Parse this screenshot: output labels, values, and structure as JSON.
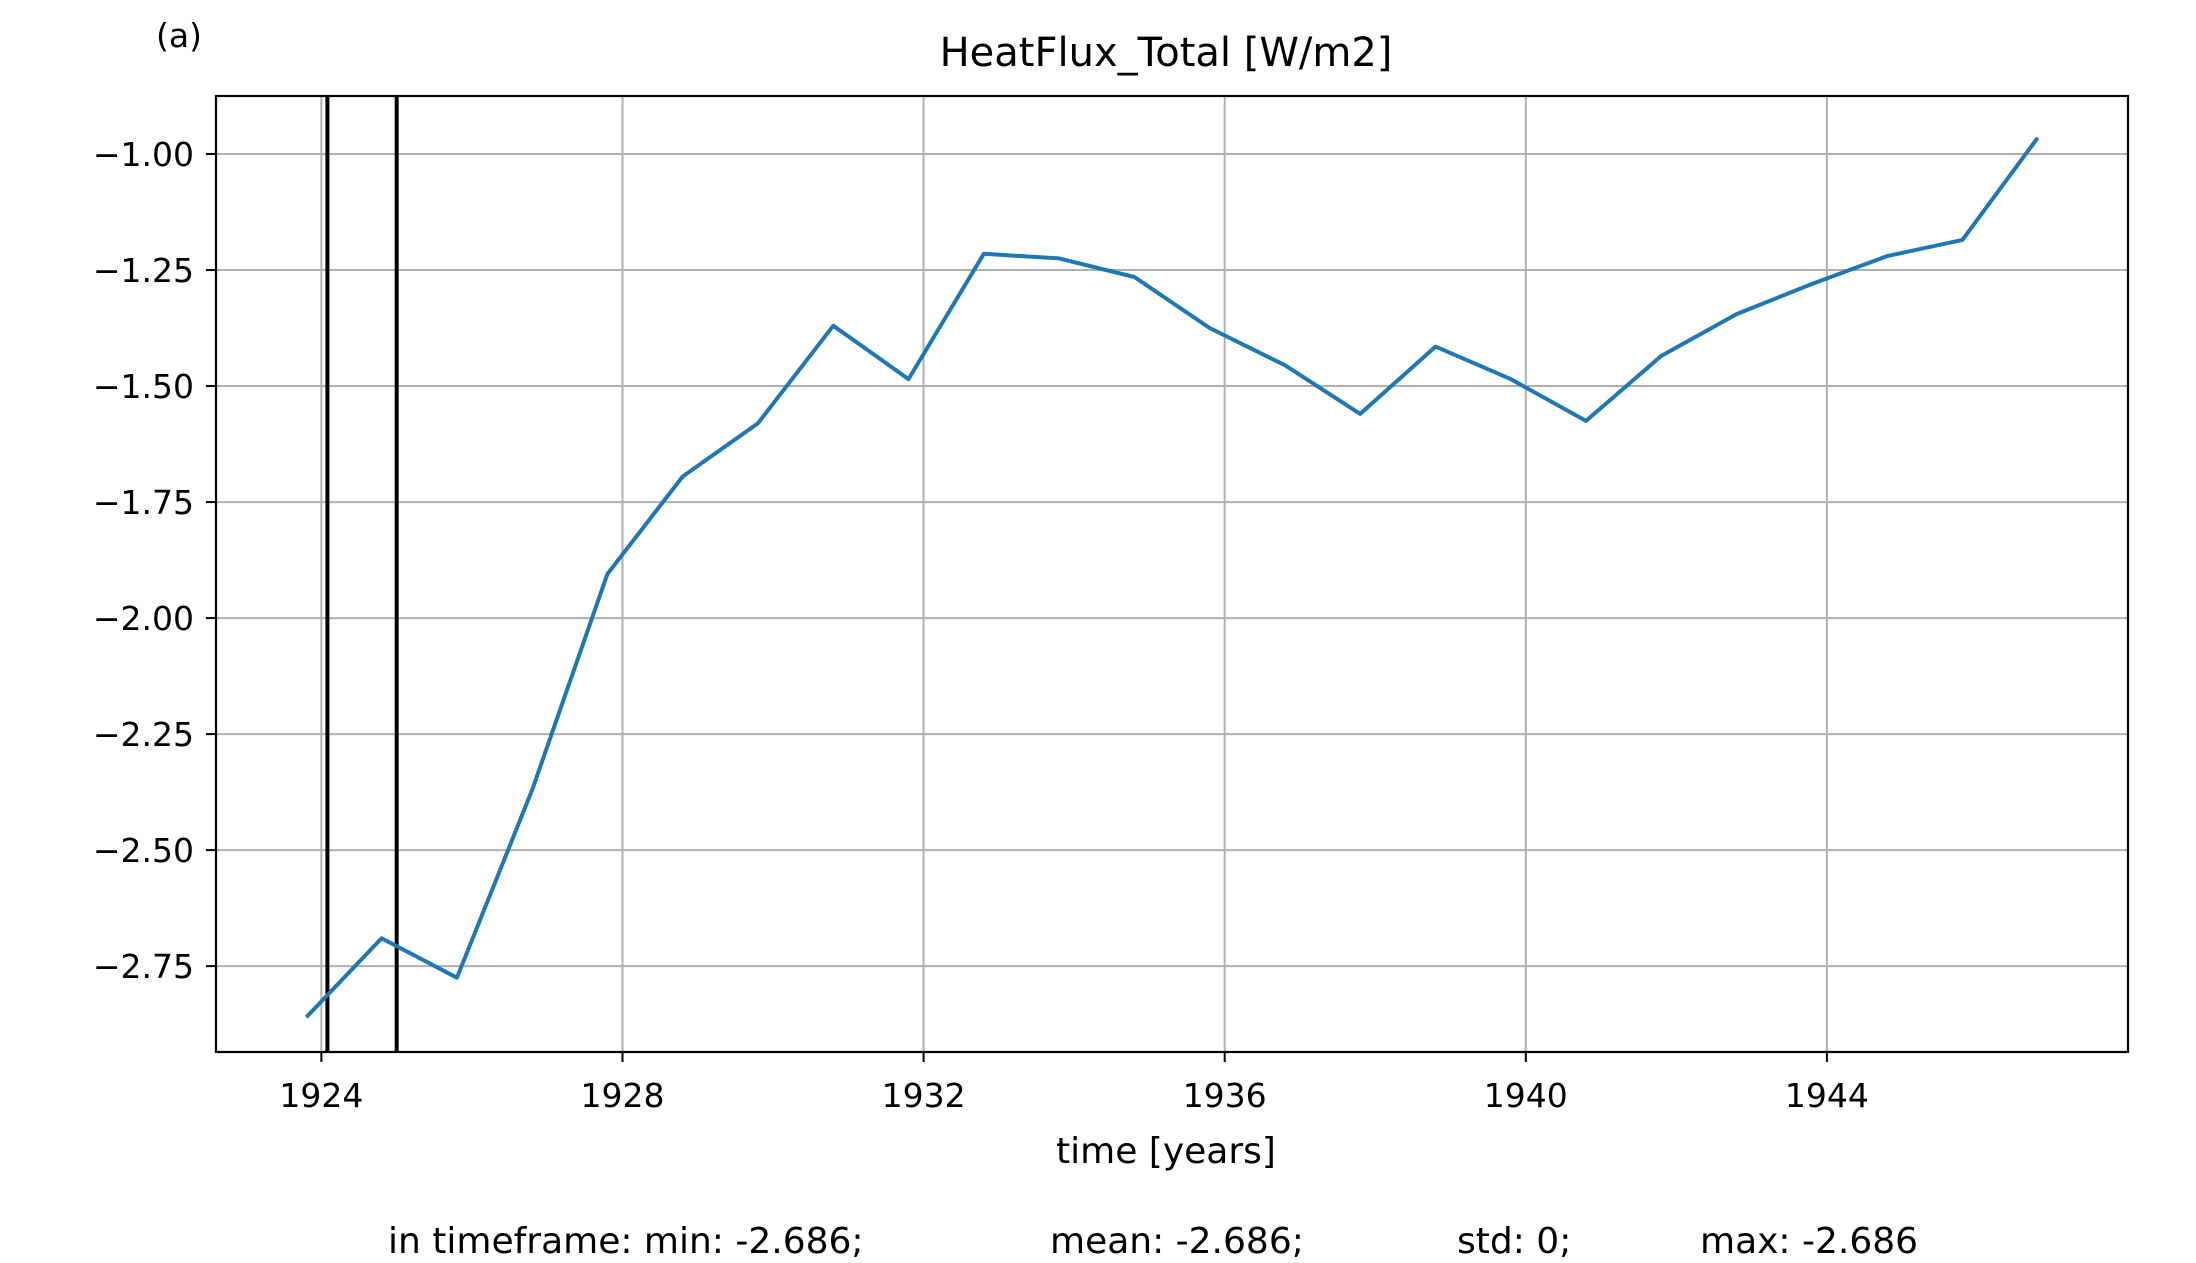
{
  "chart_data": {
    "type": "line",
    "panel_label": "(a)",
    "title": "HeatFlux_Total [W/m2]",
    "xlabel": "time [years]",
    "ylabel": "",
    "xlim": [
      1922.6,
      1948.0
    ],
    "ylim": [
      -2.935,
      -0.875
    ],
    "xticks": [
      1924,
      1928,
      1932,
      1936,
      1940,
      1944
    ],
    "xtick_labels": [
      "1924",
      "1928",
      "1932",
      "1936",
      "1940",
      "1944"
    ],
    "yticks": [
      -1.0,
      -1.25,
      -1.5,
      -1.75,
      -2.0,
      -2.25,
      -2.5,
      -2.75
    ],
    "ytick_labels": [
      "−1.00",
      "−1.25",
      "−1.50",
      "−1.75",
      "−2.00",
      "−2.25",
      "−2.50",
      "−2.75"
    ],
    "grid": true,
    "series": [
      {
        "color": "#1f77b4",
        "x": [
          1923.8,
          1924.8,
          1925.8,
          1926.8,
          1927.8,
          1928.8,
          1929.8,
          1930.8,
          1931.8,
          1932.8,
          1933.8,
          1934.8,
          1935.8,
          1936.8,
          1937.8,
          1938.8,
          1939.8,
          1940.8,
          1941.8,
          1942.8,
          1943.8,
          1944.8,
          1945.8,
          1946.8
        ],
        "y": [
          -2.86,
          -2.69,
          -2.775,
          -2.37,
          -1.905,
          -1.695,
          -1.58,
          -1.37,
          -1.485,
          -1.215,
          -1.225,
          -1.265,
          -1.375,
          -1.455,
          -1.56,
          -1.415,
          -1.485,
          -1.575,
          -1.435,
          -1.345,
          -1.28,
          -1.22,
          -1.185,
          -0.965
        ]
      }
    ],
    "vlines": [
      {
        "x": 1924.08,
        "color": "#000000"
      },
      {
        "x": 1925.0,
        "color": "#000000"
      }
    ]
  },
  "stats": {
    "prefix": "in timeframe: ",
    "min": "min: -2.686;",
    "mean": "mean: -2.686;",
    "std": "std: 0;",
    "max": "max: -2.686"
  }
}
